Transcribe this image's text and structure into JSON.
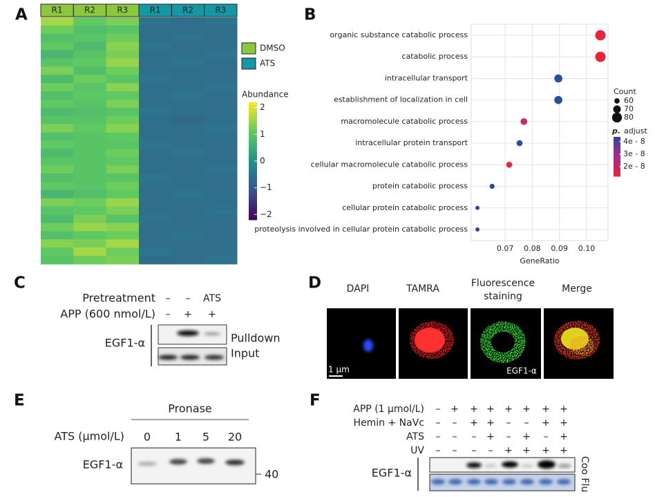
{
  "panel_labels": [
    "A",
    "B",
    "C",
    "D",
    "E",
    "F"
  ],
  "heatmap": {
    "columns": [
      "R1",
      "R2",
      "R3",
      "R1",
      "R2",
      "R3"
    ],
    "column_group": [
      0,
      0,
      0,
      1,
      1,
      1
    ],
    "legend": [
      {
        "name": "DMSO",
        "color": "#8dc63f"
      },
      {
        "name": "ATS",
        "color": "#1597a5"
      }
    ],
    "colorbar_title": "Abundance",
    "clim": [
      -2.2,
      2.2
    ],
    "colorbar_ticks": [
      2,
      1,
      0,
      {
        "value": -1,
        "label": "−1"
      },
      {
        "value": -2,
        "label": "−2"
      }
    ],
    "rows": [
      [
        1.6,
        1.1,
        1.3,
        -0.5,
        -0.6,
        -0.5
      ],
      [
        1.2,
        0.9,
        1.0,
        -0.6,
        -0.6,
        -0.6
      ],
      [
        0.9,
        1.0,
        1.2,
        -0.6,
        -0.5,
        -0.6
      ],
      [
        1.1,
        0.8,
        1.4,
        -0.5,
        -0.6,
        -0.6
      ],
      [
        0.7,
        1.0,
        1.3,
        -0.6,
        -0.6,
        -0.5
      ],
      [
        1.0,
        1.1,
        1.5,
        -0.6,
        -0.5,
        -0.6
      ],
      [
        1.3,
        0.9,
        1.2,
        -0.6,
        -0.6,
        -0.6
      ],
      [
        0.8,
        1.2,
        1.0,
        -0.5,
        -0.6,
        -0.6
      ],
      [
        1.2,
        1.0,
        1.4,
        -0.6,
        -0.6,
        -0.5
      ],
      [
        0.9,
        1.1,
        1.1,
        -0.6,
        -0.5,
        -0.6
      ],
      [
        1.1,
        1.0,
        1.3,
        -0.6,
        -0.6,
        -0.6
      ],
      [
        0.8,
        0.9,
        1.0,
        -0.5,
        -0.6,
        -0.6
      ],
      [
        1.0,
        1.0,
        1.2,
        -0.6,
        -0.7,
        -0.6
      ],
      [
        1.3,
        1.1,
        1.4,
        -0.6,
        -0.6,
        -0.5
      ],
      [
        0.9,
        1.0,
        1.1,
        -0.6,
        -0.6,
        -0.6
      ],
      [
        1.1,
        1.0,
        1.0,
        -0.5,
        -0.6,
        -0.6
      ],
      [
        0.8,
        1.0,
        1.2,
        -0.6,
        -0.5,
        -0.6
      ],
      [
        1.0,
        1.0,
        1.1,
        -0.6,
        -0.6,
        -0.6
      ],
      [
        1.2,
        1.0,
        1.3,
        -0.6,
        -0.6,
        -0.5
      ],
      [
        0.9,
        1.0,
        1.0,
        -0.5,
        -0.6,
        -0.6
      ],
      [
        1.1,
        1.0,
        1.2,
        -0.6,
        -0.6,
        -0.6
      ],
      [
        0.7,
        0.9,
        1.1,
        -0.6,
        -0.5,
        -0.6
      ],
      [
        1.3,
        1.2,
        1.5,
        -0.6,
        -0.6,
        -0.6
      ],
      [
        1.0,
        1.1,
        1.3,
        -0.6,
        -0.6,
        -0.5
      ],
      [
        0.8,
        1.3,
        1.0,
        -0.5,
        -0.6,
        -0.6
      ],
      [
        1.2,
        1.5,
        1.4,
        -0.6,
        -0.6,
        -0.6
      ],
      [
        0.9,
        1.1,
        1.2,
        -0.6,
        -0.5,
        -0.6
      ],
      [
        1.4,
        1.3,
        1.6,
        -0.6,
        -0.6,
        -0.6
      ],
      [
        1.1,
        1.6,
        1.2,
        -0.5,
        -0.6,
        -0.6
      ],
      [
        1.0,
        1.2,
        1.3,
        -0.6,
        -0.6,
        -0.5
      ]
    ]
  },
  "chart_data": {
    "type": "scatter",
    "categories": [
      "organic substance catabolic process",
      "catabolic process",
      "intracellular transport",
      "establishment of localization in cell",
      "macromolecule catabolic process",
      "intracellular protein transport",
      "cellular macromolecule catabolic process",
      "protein catabolic process",
      "cellular protein catabolic process",
      "proteolysis involved in cellular protein catabolic process"
    ],
    "values": [
      0.1051,
      0.1051,
      0.0896,
      0.0896,
      0.0769,
      0.0753,
      0.0715,
      0.0652,
      0.0598,
      0.0598
    ],
    "counts": [
      82,
      82,
      72,
      72,
      66,
      63,
      63,
      59,
      55,
      55
    ],
    "p_adjust": [
      1.3e-08,
      1.3e-08,
      4.2e-08,
      4.2e-08,
      2.8e-08,
      4.2e-08,
      1.5e-08,
      4.2e-08,
      4.3e-08,
      4.3e-08
    ],
    "colors": [
      "#e8233a",
      "#e8233a",
      "#2b4d9c",
      "#2b4d9c",
      "#c42b6e",
      "#2b4d9c",
      "#e5283f",
      "#30489a",
      "#3a3f92",
      "#3a3f92"
    ],
    "xlim": [
      0.0575,
      0.1079
    ],
    "xticks": [
      0.07,
      0.08,
      0.09,
      {
        "value": 0.1,
        "label": "0.10"
      }
    ],
    "xlabel": "GeneRatio",
    "grid": true,
    "size_legend_title": "Count",
    "size_ticks": [
      60,
      70,
      80
    ],
    "color_legend_title_italic": "p.",
    "color_legend_title": "adjust",
    "color_lim": [
      4.39e-08,
      1.22e-08
    ],
    "colorbar_colors": [
      "#3b3f9a",
      "#a22f86",
      "#e8233a"
    ],
    "color_ticks": [
      {
        "value": 4e-08,
        "label": "4e - 8"
      },
      {
        "value": 3e-08,
        "label": "3e - 8"
      },
      {
        "value": 2e-08,
        "label": "2e - 8"
      }
    ]
  },
  "panel_c": {
    "rows": [
      {
        "label": "Pretreatment",
        "signs": [
          "–",
          "–",
          "ATS"
        ]
      },
      {
        "label": "APP (600 nmol/L)",
        "signs": [
          "–",
          "+",
          "+"
        ]
      }
    ],
    "protein": "EGF1-α",
    "blots": [
      "Pulldown",
      "Input"
    ]
  },
  "panel_d": {
    "headers": [
      "DAPI",
      "TAMRA",
      "Fluorescence",
      "staining",
      "Merge"
    ],
    "scale": "1 µm",
    "inset": "EGF1-α"
  },
  "panel_e": {
    "treatment": "Pronase",
    "row_label": "ATS (µmol/L)",
    "doses": [
      "0",
      "1",
      "5",
      "20"
    ],
    "protein": "EGF1-α",
    "marker": "40"
  },
  "panel_f": {
    "rows": [
      {
        "label": "APP (1 µmol/L)",
        "signs": [
          "–",
          "+",
          "+",
          "+",
          "+",
          "+",
          "+",
          "+"
        ]
      },
      {
        "label": "Hemin + NaVc",
        "signs": [
          "–",
          "–",
          "+",
          "+",
          "–",
          "–",
          "+",
          "+"
        ]
      },
      {
        "label": "ATS",
        "signs": [
          "–",
          "–",
          "–",
          "+",
          "–",
          "+",
          "–",
          "+"
        ]
      },
      {
        "label": "UV",
        "signs": [
          "–",
          "–",
          "–",
          "–",
          "+",
          "+",
          "+",
          "+"
        ]
      }
    ],
    "protein": "EGF1-α",
    "side_label": "Coo Flu"
  }
}
